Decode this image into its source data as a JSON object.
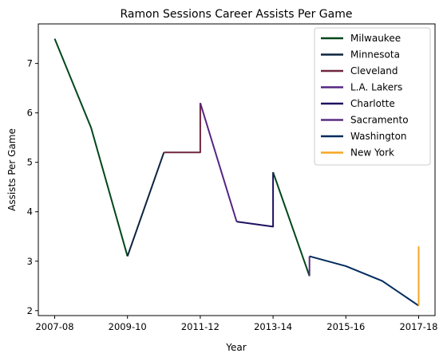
{
  "chart_data": {
    "type": "line",
    "title": "Ramon Sessions Career Assists Per Game",
    "xlabel": "Year",
    "ylabel": "Assists Per Game",
    "x_ticks": [
      "2007-08",
      "2009-10",
      "2011-12",
      "2013-14",
      "2015-16",
      "2017-18"
    ],
    "xlim": [
      "2007-08",
      "2017-18"
    ],
    "ylim": [
      1.9,
      7.8
    ],
    "y_ticks": [
      2,
      3,
      4,
      5,
      6,
      7
    ],
    "grid": false,
    "legend_position": "top-right",
    "series": [
      {
        "name": "Milwaukee",
        "color": "#00471b",
        "points": [
          [
            "2007-08",
            7.5
          ],
          [
            "2008-09",
            5.7
          ],
          [
            "2009-10",
            3.1
          ]
        ]
      },
      {
        "name": "Minnesota",
        "color": "#0c2340",
        "points": [
          [
            "2009-10",
            3.1
          ],
          [
            "2010-11",
            5.2
          ]
        ]
      },
      {
        "name": "Cleveland",
        "color": "#6f263d",
        "points": [
          [
            "2010-11",
            5.2
          ],
          [
            "2011-12",
            5.2
          ],
          [
            "2011-12",
            6.2
          ]
        ]
      },
      {
        "name": "L.A. Lakers",
        "color": "#552583",
        "points": [
          [
            "2011-12",
            6.2
          ],
          [
            "2012-13",
            3.8
          ]
        ]
      },
      {
        "name": "Charlotte",
        "color": "#1d1160",
        "points": [
          [
            "2012-13",
            3.8
          ],
          [
            "2013-14",
            3.7
          ],
          [
            "2013-14",
            4.8
          ]
        ]
      },
      {
        "name": "Milwaukee",
        "color": "#00471b",
        "show_in_legend": false,
        "points": [
          [
            "2013-14",
            4.8
          ],
          [
            "2014-15",
            2.7
          ]
        ]
      },
      {
        "name": "Sacramento",
        "color": "#5a2d81",
        "points": [
          [
            "2014-15",
            2.7
          ],
          [
            "2014-15",
            3.1
          ]
        ]
      },
      {
        "name": "Washington",
        "color": "#002b5c",
        "points": [
          [
            "2014-15",
            3.1
          ],
          [
            "2015-16",
            2.9
          ],
          [
            "2016-17",
            2.6
          ],
          [
            "2017-18",
            2.1
          ]
        ]
      },
      {
        "name": "New York",
        "color": "#f5a623",
        "points": [
          [
            "2017-18",
            2.1
          ],
          [
            "2017-18",
            3.3
          ]
        ]
      }
    ]
  }
}
